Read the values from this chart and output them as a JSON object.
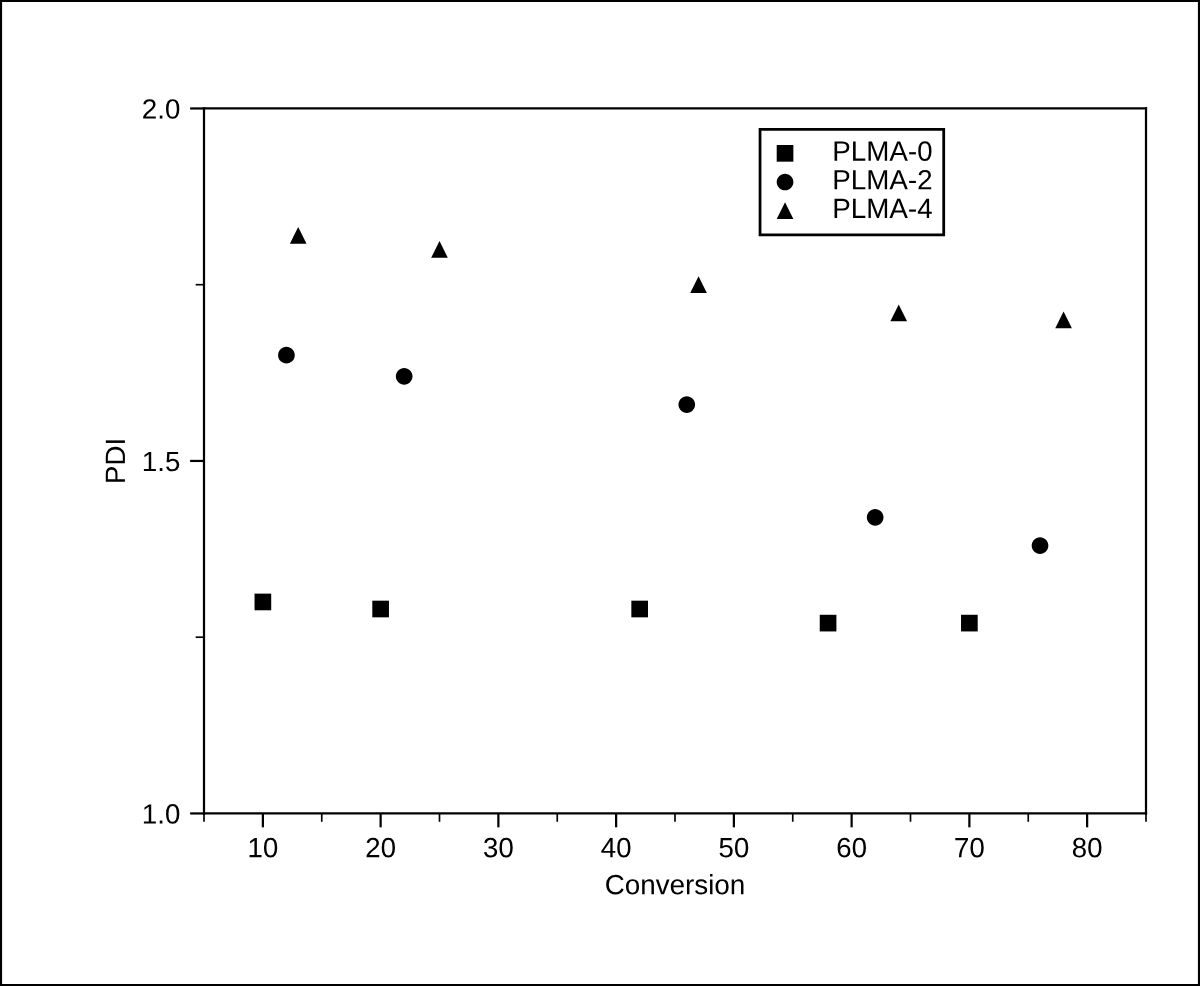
{
  "chart_data": {
    "type": "scatter",
    "xlabel": "Conversion",
    "ylabel": "PDI",
    "xlim": [
      5,
      85
    ],
    "xticks": [
      10,
      20,
      30,
      40,
      50,
      60,
      70,
      80
    ],
    "ylim": [
      1.0,
      2.0
    ],
    "yticks": [
      {
        "value": 1.0,
        "label": "1.0"
      },
      {
        "value": 1.5,
        "label": "1.5"
      },
      {
        "value": 2.0,
        "label": "2.0"
      }
    ],
    "grid": false,
    "legend": "top right",
    "series": [
      {
        "name": "PLMA-0",
        "color": "#000000",
        "marker": "square",
        "x": [
          10,
          20,
          42,
          58,
          70
        ],
        "values": [
          1.3,
          1.29,
          1.29,
          1.27,
          1.27
        ]
      },
      {
        "name": "PLMA-2",
        "color": "#000000",
        "marker": "circle",
        "x": [
          12,
          22,
          46,
          62,
          76
        ],
        "values": [
          1.65,
          1.62,
          1.58,
          1.42,
          1.38
        ]
      },
      {
        "name": "PLMA-4",
        "color": "#000000",
        "marker": "triangle",
        "x": [
          13,
          25,
          47,
          64,
          78
        ],
        "values": [
          1.82,
          1.8,
          1.75,
          1.71,
          1.7
        ]
      }
    ]
  }
}
